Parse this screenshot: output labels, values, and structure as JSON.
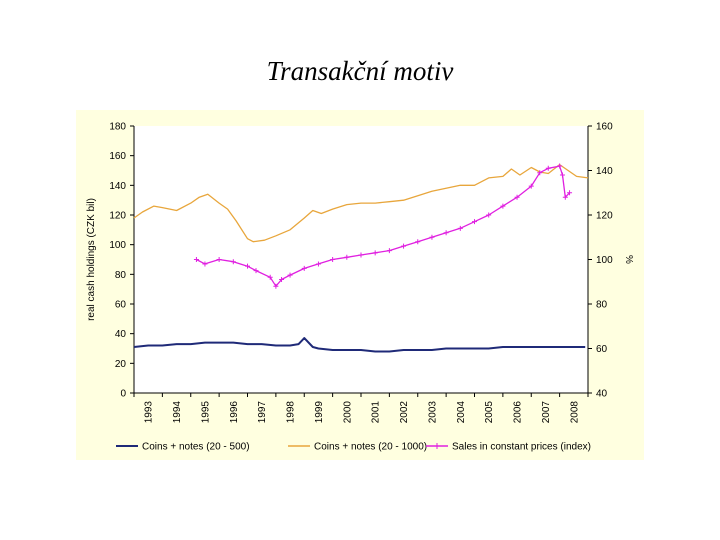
{
  "title": "Transakční motiv",
  "colors": {
    "panel_bg": "#FFFFE0",
    "series1": "#1F2A78",
    "series2": "#E8A63C",
    "series3": "#E020E0"
  },
  "chart_data": {
    "type": "line",
    "y_left_label": "real cash holdings (CZK bil)",
    "y_right_label": "%",
    "y_left_ticks": [
      "0",
      "20",
      "40",
      "60",
      "80",
      "100",
      "120",
      "140",
      "160",
      "180"
    ],
    "y_left_range": [
      0,
      180
    ],
    "y_right_ticks": [
      "40",
      "60",
      "80",
      "100",
      "120",
      "140",
      "160"
    ],
    "y_right_range": [
      40,
      160
    ],
    "x_ticks": [
      "1993",
      "1994",
      "1995",
      "1996",
      "1997",
      "1998",
      "1999",
      "2000",
      "2001",
      "2002",
      "2003",
      "2004",
      "2005",
      "2006",
      "2007",
      "2008"
    ],
    "x_range": [
      1993.0,
      2009.0
    ],
    "grid": false,
    "legend_position": "bottom",
    "series": [
      {
        "name": "Coins + notes (20 - 500)",
        "axis": "left",
        "color": "#1F2A78",
        "x": [
          1993.0,
          1993.5,
          1994.0,
          1994.5,
          1995.0,
          1995.5,
          1996.0,
          1996.5,
          1997.0,
          1997.5,
          1998.0,
          1998.5,
          1998.8,
          1999.0,
          1999.3,
          1999.5,
          2000.0,
          2000.5,
          2001.0,
          2001.5,
          2002.0,
          2002.5,
          2003.0,
          2003.5,
          2004.0,
          2004.5,
          2005.0,
          2005.5,
          2006.0,
          2006.5,
          2007.0,
          2007.5,
          2008.0,
          2008.5,
          2008.9
        ],
        "y": [
          31,
          32,
          32,
          33,
          33,
          34,
          34,
          34,
          33,
          33,
          32,
          32,
          33,
          37,
          31,
          30,
          29,
          29,
          29,
          28,
          28,
          29,
          29,
          29,
          30,
          30,
          30,
          30,
          31,
          31,
          31,
          31,
          31,
          31,
          31
        ]
      },
      {
        "name": "Coins + notes (20 - 1000)",
        "axis": "left",
        "color": "#E8A63C",
        "x": [
          1993.0,
          1993.3,
          1993.7,
          1994.0,
          1994.5,
          1995.0,
          1995.3,
          1995.6,
          1996.0,
          1996.3,
          1996.6,
          1997.0,
          1997.2,
          1997.6,
          1998.0,
          1998.5,
          1999.0,
          1999.3,
          1999.6,
          2000.0,
          2000.5,
          2001.0,
          2001.5,
          2002.0,
          2002.5,
          2003.0,
          2003.5,
          2004.0,
          2004.5,
          2005.0,
          2005.5,
          2006.0,
          2006.3,
          2006.6,
          2007.0,
          2007.3,
          2007.6,
          2008.0,
          2008.3,
          2008.6,
          2009.0
        ],
        "y": [
          118,
          122,
          126,
          125,
          123,
          128,
          132,
          134,
          128,
          124,
          116,
          104,
          102,
          103,
          106,
          110,
          118,
          123,
          121,
          124,
          127,
          128,
          128,
          129,
          130,
          133,
          136,
          138,
          140,
          140,
          145,
          146,
          151,
          147,
          152,
          149,
          148,
          154,
          150,
          146,
          145
        ]
      },
      {
        "name": "Sales in constant prices (index)",
        "axis": "right",
        "color": "#E020E0",
        "x": [
          1995.2,
          1995.5,
          1996.0,
          1996.5,
          1997.0,
          1997.3,
          1997.8,
          1998.0,
          1998.2,
          1998.5,
          1999.0,
          1999.5,
          2000.0,
          2000.5,
          2001.0,
          2001.5,
          2002.0,
          2002.5,
          2003.0,
          2003.5,
          2004.0,
          2004.5,
          2005.0,
          2005.5,
          2006.0,
          2006.5,
          2007.0,
          2007.3,
          2007.6,
          2008.0,
          2008.1,
          2008.2,
          2008.35
        ],
        "y": [
          100,
          98,
          100,
          99,
          97,
          95,
          92,
          88,
          91,
          93,
          96,
          98,
          100,
          101,
          102,
          103,
          104,
          106,
          108,
          110,
          112,
          114,
          117,
          120,
          124,
          128,
          133,
          139,
          141,
          142,
          138,
          128,
          130
        ]
      }
    ]
  }
}
